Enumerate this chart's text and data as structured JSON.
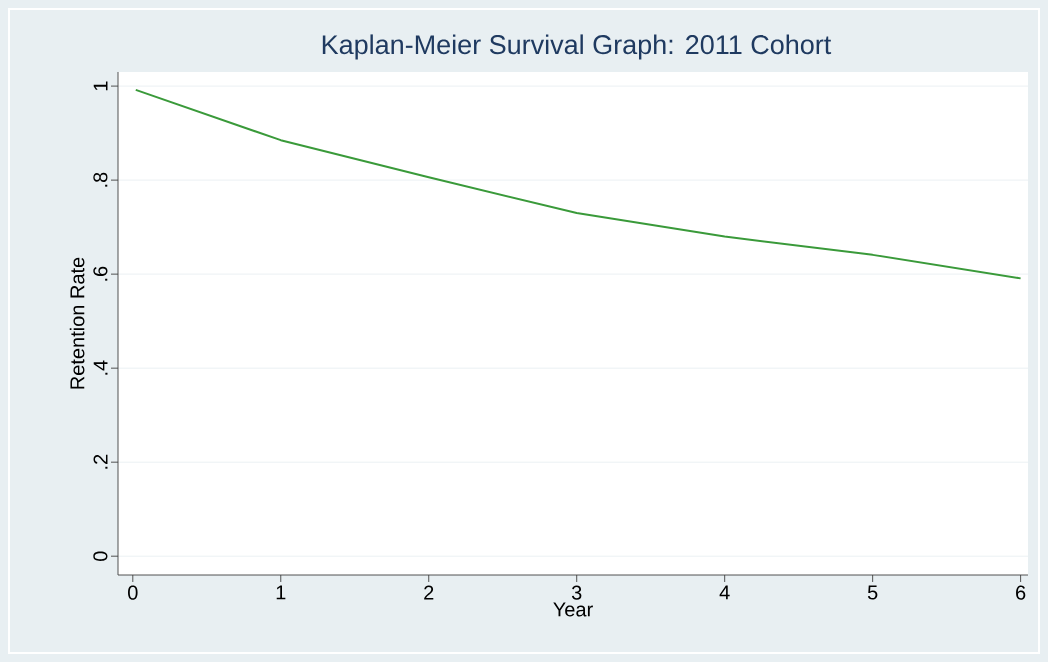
{
  "chart_data": {
    "type": "line",
    "title": "Kaplan-Meier Survival Graph: 2011 Cohort",
    "xlabel": "Year",
    "ylabel": "Retention Rate",
    "x": [
      0.02,
      1,
      2,
      3,
      4,
      5,
      6
    ],
    "series": [
      {
        "color": "#3a9a3a",
        "values": [
          0.992,
          0.885,
          0.806,
          0.73,
          0.68,
          0.641,
          0.591
        ]
      }
    ],
    "xlim": [
      -0.1,
      6.05
    ],
    "ylim": [
      -0.04,
      1.03
    ],
    "xticks": [
      0,
      1,
      2,
      3,
      4,
      5,
      6
    ],
    "yticks": [
      {
        "value": 0,
        "label": "0"
      },
      {
        "value": 0.2,
        "label": ".2"
      },
      {
        "value": 0.4,
        "label": ".4"
      },
      {
        "value": 0.6,
        "label": ".6"
      },
      {
        "value": 0.8,
        "label": ".8"
      },
      {
        "value": 1,
        "label": "1"
      }
    ],
    "grid": "y",
    "marker": "none",
    "line_style": "solid"
  }
}
